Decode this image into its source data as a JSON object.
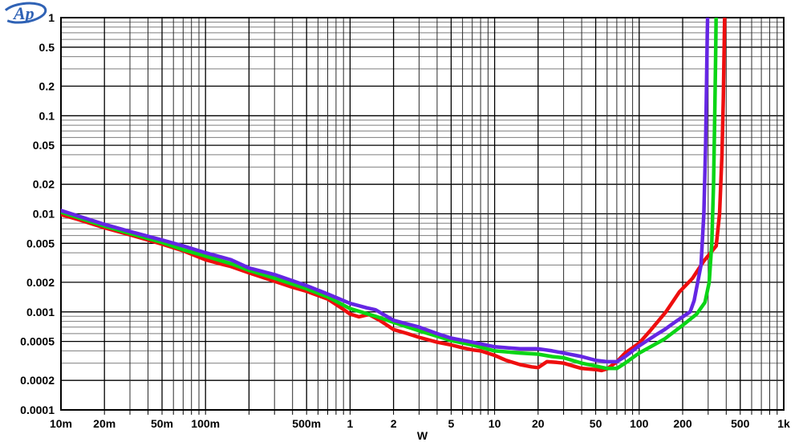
{
  "figure": {
    "background": "#ffffff",
    "border_color": "#000000"
  },
  "chart_data": {
    "type": "line",
    "title": "",
    "xlabel": "W",
    "ylabel": "",
    "legend": "none",
    "x_axis": {
      "scale": "log",
      "min": 0.01,
      "max": 1000,
      "labeled_ticks": [
        0.01,
        0.02,
        0.05,
        0.1,
        0.5,
        1,
        2,
        5,
        10,
        20,
        50,
        100,
        200,
        500,
        1000
      ],
      "tick_labels": [
        "10m",
        "20m",
        "50m",
        "100m",
        "500m",
        "1",
        "2",
        "5",
        "10",
        "20",
        "50",
        "100",
        "200",
        "500",
        "1k"
      ]
    },
    "y_axis": {
      "scale": "log",
      "min": 0.0001,
      "max": 1,
      "labeled_ticks": [
        1,
        0.5,
        0.2,
        0.1,
        0.05,
        0.02,
        0.01,
        0.005,
        0.002,
        0.001,
        0.0005,
        0.0002,
        0.0001
      ],
      "tick_labels": [
        "1",
        "0.5",
        "0.2",
        "0.1",
        "0.05",
        "0.02",
        "0.01",
        "0.005",
        "0.002",
        "0.001",
        "0.0005",
        "0.0002",
        "0.0001"
      ]
    },
    "grid": {
      "show_minor": true,
      "major_color": "#000000",
      "minor_h_color": "#7d7d7d",
      "minor_v_color": "#2c2c2c"
    },
    "series": [
      {
        "name": "trace-red",
        "color": "#ee0e0e",
        "points": [
          [
            0.01,
            0.0098
          ],
          [
            0.013,
            0.0088
          ],
          [
            0.02,
            0.0072
          ],
          [
            0.03,
            0.0061
          ],
          [
            0.04,
            0.0054
          ],
          [
            0.05,
            0.0049
          ],
          [
            0.07,
            0.0042
          ],
          [
            0.1,
            0.0034
          ],
          [
            0.13,
            0.00305
          ],
          [
            0.15,
            0.0029
          ],
          [
            0.2,
            0.0025
          ],
          [
            0.3,
            0.00205
          ],
          [
            0.4,
            0.00178
          ],
          [
            0.5,
            0.00162
          ],
          [
            0.7,
            0.00135
          ],
          [
            0.85,
            0.00112
          ],
          [
            1,
            0.00095
          ],
          [
            1.15,
            0.00089
          ],
          [
            1.35,
            0.00094
          ],
          [
            1.6,
            0.00082
          ],
          [
            2,
            0.00066
          ],
          [
            2.5,
            0.0006
          ],
          [
            3,
            0.00055
          ],
          [
            4,
            0.00049
          ],
          [
            5,
            0.00046
          ],
          [
            6,
            0.00043
          ],
          [
            7,
            0.00041
          ],
          [
            8,
            0.0004
          ],
          [
            10,
            0.00036
          ],
          [
            12,
            0.00032
          ],
          [
            15,
            0.00029
          ],
          [
            18,
            0.000275
          ],
          [
            20,
            0.00027
          ],
          [
            23,
            0.00031
          ],
          [
            27,
            0.000305
          ],
          [
            30,
            0.0003
          ],
          [
            35,
            0.00028
          ],
          [
            40,
            0.000265
          ],
          [
            50,
            0.000258
          ],
          [
            55,
            0.000252
          ],
          [
            60,
            0.000262
          ],
          [
            70,
            0.00031
          ],
          [
            80,
            0.00038
          ],
          [
            100,
            0.00048
          ],
          [
            120,
            0.00065
          ],
          [
            135,
            0.0008
          ],
          [
            153,
            0.001
          ],
          [
            190,
            0.0016
          ],
          [
            234,
            0.0022
          ],
          [
            280,
            0.0033
          ],
          [
            341,
            0.0047
          ],
          [
            360,
            0.01
          ],
          [
            374,
            0.04
          ],
          [
            382,
            0.15
          ],
          [
            388,
            0.6
          ],
          [
            391,
            1.2
          ]
        ]
      },
      {
        "name": "trace-green",
        "color": "#0bd516",
        "points": [
          [
            0.01,
            0.0104
          ],
          [
            0.02,
            0.0075
          ],
          [
            0.03,
            0.0063
          ],
          [
            0.05,
            0.0051
          ],
          [
            0.07,
            0.0043
          ],
          [
            0.1,
            0.0037
          ],
          [
            0.15,
            0.0031
          ],
          [
            0.2,
            0.00265
          ],
          [
            0.3,
            0.0022
          ],
          [
            0.5,
            0.00172
          ],
          [
            0.7,
            0.00142
          ],
          [
            1,
            0.00108
          ],
          [
            1.5,
            0.0009
          ],
          [
            2,
            0.00078
          ],
          [
            3,
            0.00064
          ],
          [
            5,
            0.00051
          ],
          [
            7,
            0.00046
          ],
          [
            10,
            0.0004
          ],
          [
            15,
            0.00038
          ],
          [
            20,
            0.00037
          ],
          [
            25,
            0.00035
          ],
          [
            30,
            0.00034
          ],
          [
            40,
            0.0003
          ],
          [
            50,
            0.00028
          ],
          [
            60,
            0.000265
          ],
          [
            70,
            0.000265
          ],
          [
            80,
            0.0003
          ],
          [
            100,
            0.00038
          ],
          [
            130,
            0.00047
          ],
          [
            150,
            0.00053
          ],
          [
            200,
            0.00073
          ],
          [
            250,
            0.00095
          ],
          [
            285,
            0.00125
          ],
          [
            305,
            0.002
          ],
          [
            318,
            0.005
          ],
          [
            327,
            0.02
          ],
          [
            333,
            0.09
          ],
          [
            338,
            0.4
          ],
          [
            341,
            1.2
          ]
        ]
      },
      {
        "name": "trace-violet",
        "color": "#6526e4",
        "points": [
          [
            0.01,
            0.0108
          ],
          [
            0.02,
            0.0078
          ],
          [
            0.03,
            0.0066
          ],
          [
            0.05,
            0.0054
          ],
          [
            0.07,
            0.0047
          ],
          [
            0.1,
            0.004
          ],
          [
            0.15,
            0.0034
          ],
          [
            0.2,
            0.0028
          ],
          [
            0.3,
            0.0024
          ],
          [
            0.5,
            0.00185
          ],
          [
            0.7,
            0.00152
          ],
          [
            1,
            0.00122
          ],
          [
            1.3,
            0.0011
          ],
          [
            1.5,
            0.00105
          ],
          [
            2,
            0.00082
          ],
          [
            3,
            0.0007
          ],
          [
            4,
            0.0006
          ],
          [
            5,
            0.00054
          ],
          [
            7,
            0.00049
          ],
          [
            10,
            0.00044
          ],
          [
            15,
            0.00042
          ],
          [
            20,
            0.00042
          ],
          [
            25,
            0.0004
          ],
          [
            30,
            0.00038
          ],
          [
            40,
            0.00035
          ],
          [
            50,
            0.00032
          ],
          [
            60,
            0.00031
          ],
          [
            70,
            0.00031
          ],
          [
            80,
            0.00035
          ],
          [
            100,
            0.00045
          ],
          [
            130,
            0.00058
          ],
          [
            150,
            0.00066
          ],
          [
            180,
            0.0008
          ],
          [
            225,
            0.001
          ],
          [
            240,
            0.0013
          ],
          [
            268,
            0.003
          ],
          [
            280,
            0.01
          ],
          [
            288,
            0.05
          ],
          [
            293,
            0.25
          ],
          [
            296,
            0.7
          ],
          [
            298,
            1.2
          ]
        ]
      }
    ]
  },
  "logo": {
    "text": "Ap",
    "title": "Audio Precision",
    "color": "#2f62b5"
  }
}
